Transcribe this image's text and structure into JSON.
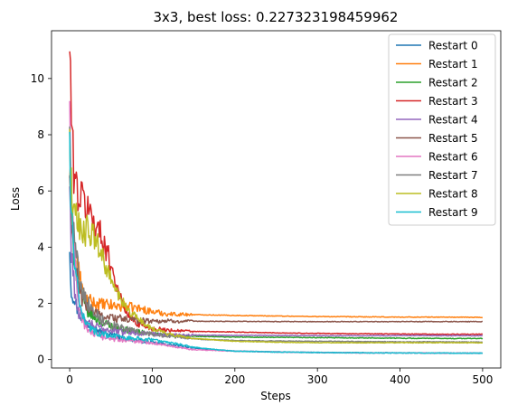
{
  "chart_data": {
    "type": "line",
    "title": "3x3, best loss: 0.227323198459962",
    "xlabel": "Steps",
    "ylabel": "Loss",
    "xlim": [
      -22,
      522
    ],
    "ylim": [
      -0.3,
      11.7
    ],
    "xticks": [
      0,
      100,
      200,
      300,
      400,
      500
    ],
    "yticks": [
      0,
      2,
      4,
      6,
      8,
      10
    ],
    "grid": false,
    "legend_position": "top-right",
    "series": [
      {
        "name": "Restart 0",
        "color": "#1f77b4",
        "x": [
          0,
          2,
          5,
          10,
          20,
          30,
          40,
          60,
          80,
          100,
          130,
          160,
          200,
          250,
          300,
          350,
          400,
          450,
          500
        ],
        "y": [
          4.1,
          2.4,
          2.3,
          1.7,
          1.3,
          1.1,
          0.95,
          0.8,
          0.68,
          0.6,
          0.5,
          0.38,
          0.3,
          0.27,
          0.25,
          0.24,
          0.235,
          0.23,
          0.227
        ]
      },
      {
        "name": "Restart 1",
        "color": "#ff7f0e",
        "x": [
          0,
          2,
          5,
          10,
          15,
          20,
          30,
          40,
          60,
          80,
          100,
          120,
          150,
          200,
          250,
          300,
          350,
          400,
          450,
          500
        ],
        "y": [
          6.8,
          5.5,
          4.2,
          3.3,
          2.5,
          2.1,
          2.0,
          1.95,
          1.9,
          1.85,
          1.7,
          1.62,
          1.6,
          1.57,
          1.55,
          1.53,
          1.52,
          1.51,
          1.51,
          1.5
        ]
      },
      {
        "name": "Restart 2",
        "color": "#2ca02c",
        "x": [
          0,
          2,
          5,
          10,
          15,
          20,
          30,
          40,
          60,
          80,
          100,
          130,
          160,
          200,
          250,
          300,
          350,
          400,
          450,
          500
        ],
        "y": [
          6.6,
          5.0,
          3.9,
          2.9,
          2.2,
          1.8,
          1.5,
          1.3,
          1.1,
          1.0,
          0.9,
          0.85,
          0.82,
          0.8,
          0.79,
          0.78,
          0.77,
          0.76,
          0.75,
          0.75
        ]
      },
      {
        "name": "Restart 3",
        "color": "#d62728",
        "x": [
          0,
          3,
          6,
          10,
          20,
          30,
          40,
          50,
          60,
          70,
          80,
          90,
          100,
          120,
          150,
          200,
          250,
          300,
          350,
          400,
          450,
          500
        ],
        "y": [
          11.2,
          7.6,
          6.5,
          5.9,
          5.5,
          4.9,
          4.3,
          3.4,
          2.3,
          1.6,
          1.3,
          1.2,
          1.1,
          1.05,
          1.0,
          0.98,
          0.95,
          0.93,
          0.92,
          0.91,
          0.9,
          0.9
        ]
      },
      {
        "name": "Restart 4",
        "color": "#9467bd",
        "x": [
          0,
          2,
          5,
          8,
          12,
          20,
          30,
          40,
          60,
          80,
          100,
          130,
          160,
          200,
          250,
          300,
          350,
          400,
          450,
          500
        ],
        "y": [
          6.2,
          4.0,
          2.8,
          2.0,
          1.6,
          1.3,
          1.2,
          1.1,
          1.0,
          0.95,
          0.9,
          0.88,
          0.87,
          0.86,
          0.86,
          0.85,
          0.85,
          0.85,
          0.85,
          0.85
        ]
      },
      {
        "name": "Restart 5",
        "color": "#8c564b",
        "x": [
          0,
          2,
          5,
          10,
          15,
          20,
          30,
          40,
          60,
          80,
          100,
          120,
          150,
          200,
          250,
          300,
          350,
          400,
          450,
          500
        ],
        "y": [
          6.5,
          5.0,
          3.8,
          2.8,
          2.2,
          1.9,
          1.7,
          1.55,
          1.45,
          1.4,
          1.38,
          1.37,
          1.36,
          1.36,
          1.35,
          1.35,
          1.35,
          1.35,
          1.35,
          1.35
        ]
      },
      {
        "name": "Restart 6",
        "color": "#e377c2",
        "x": [
          0,
          2,
          5,
          10,
          15,
          20,
          30,
          40,
          60,
          80,
          100,
          120,
          150,
          200,
          250,
          300,
          350,
          400,
          450,
          500
        ],
        "y": [
          9.0,
          6.2,
          3.8,
          2.2,
          1.5,
          1.1,
          0.9,
          0.8,
          0.7,
          0.65,
          0.6,
          0.5,
          0.35,
          0.3,
          0.27,
          0.25,
          0.24,
          0.235,
          0.23,
          0.228
        ]
      },
      {
        "name": "Restart 7",
        "color": "#7f7f7f",
        "x": [
          0,
          2,
          5,
          10,
          15,
          20,
          30,
          40,
          60,
          80,
          100,
          130,
          160,
          200,
          250,
          300,
          350,
          400,
          450,
          500
        ],
        "y": [
          8.0,
          6.0,
          4.5,
          3.3,
          2.6,
          2.1,
          1.7,
          1.4,
          1.15,
          1.0,
          0.9,
          0.8,
          0.72,
          0.68,
          0.66,
          0.65,
          0.64,
          0.63,
          0.63,
          0.62
        ]
      },
      {
        "name": "Restart 8",
        "color": "#bcbd22",
        "x": [
          0,
          3,
          6,
          10,
          20,
          30,
          40,
          50,
          60,
          70,
          80,
          90,
          100,
          120,
          150,
          200,
          250,
          300,
          350,
          400,
          450,
          500
        ],
        "y": [
          7.8,
          5.5,
          5.0,
          4.8,
          4.6,
          4.3,
          3.6,
          2.8,
          2.2,
          1.8,
          1.5,
          1.3,
          1.1,
          0.9,
          0.75,
          0.65,
          0.62,
          0.6,
          0.6,
          0.6,
          0.6,
          0.6
        ]
      },
      {
        "name": "Restart 9",
        "color": "#17becf",
        "x": [
          0,
          2,
          5,
          10,
          15,
          20,
          30,
          40,
          60,
          80,
          100,
          130,
          160,
          200,
          250,
          300,
          350,
          400,
          450,
          500
        ],
        "y": [
          7.6,
          5.2,
          3.6,
          2.4,
          1.7,
          1.3,
          1.0,
          0.9,
          0.8,
          0.75,
          0.7,
          0.55,
          0.4,
          0.3,
          0.27,
          0.25,
          0.24,
          0.235,
          0.23,
          0.229
        ]
      }
    ]
  }
}
